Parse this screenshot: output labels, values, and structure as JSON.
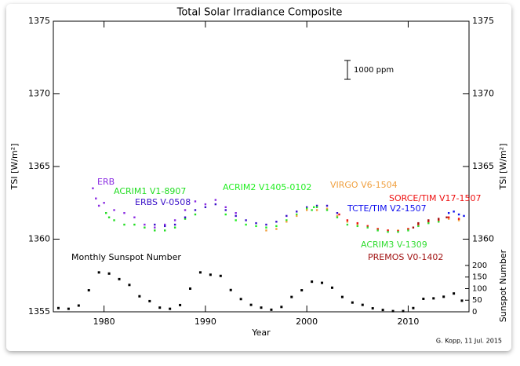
{
  "chart_data": {
    "type": "scatter",
    "title": "Total Solar Irradiance Composite",
    "x_label": "Year",
    "y_label": "TSI [W/m²]",
    "y2_label": "Sunspot Number",
    "annotations": [
      "1000 ppm",
      "G. Kopp, 11 Jul. 2015"
    ],
    "xlim": [
      1975,
      2016
    ],
    "xticks": [
      1980,
      1990,
      2000,
      2010
    ],
    "ylim": [
      1355,
      1375
    ],
    "yticks": [
      1355,
      1360,
      1365,
      1370,
      1375
    ],
    "y2lim": [
      0,
      1254
    ],
    "y2ticks": [
      0,
      50,
      100,
      150,
      200
    ],
    "series": [
      {
        "name": "ERB",
        "color": "#8a2be2",
        "x": [
          1978.9,
          1979.2,
          1979.5,
          1980,
          1981,
          1982,
          1983,
          1984,
          1985,
          1986,
          1987,
          1988,
          1989,
          1990,
          1991,
          1992,
          1993
        ],
        "values": [
          1363.5,
          1362.8,
          1362.3,
          1362.5,
          1362.0,
          1361.8,
          1361.5,
          1361.0,
          1360.8,
          1361.0,
          1361.3,
          1362.0,
          1362.6,
          1362.4,
          1362.7,
          1362.2,
          1361.8
        ]
      },
      {
        "name": "ACRIM1 V1-8907",
        "color": "#22dd22",
        "x": [
          1980.2,
          1980.5,
          1981,
          1982,
          1983,
          1984,
          1985,
          1986,
          1987,
          1988,
          1989
        ],
        "values": [
          1361.8,
          1361.5,
          1361.3,
          1361.0,
          1361.0,
          1360.8,
          1360.6,
          1360.6,
          1360.8,
          1361.4,
          1361.7
        ]
      },
      {
        "name": "ERBS V-0508",
        "color": "#3a10c8",
        "x": [
          1985,
          1986,
          1987,
          1988,
          1989,
          1990,
          1991,
          1992,
          1993,
          1994,
          1995,
          1996,
          1997,
          1998,
          1999,
          2000,
          2001,
          2002,
          2003
        ],
        "values": [
          1361.0,
          1360.9,
          1361.0,
          1361.5,
          1362.0,
          1362.2,
          1362.4,
          1362.0,
          1361.6,
          1361.3,
          1361.1,
          1361.0,
          1361.2,
          1361.6,
          1361.9,
          1362.2,
          1362.3,
          1362.3,
          1361.8
        ]
      },
      {
        "name": "ACRIM2 V1405-0102",
        "color": "#22ee22",
        "x": [
          1992,
          1993,
          1994,
          1995,
          1996,
          1997,
          1998,
          1999,
          2000,
          2000.7
        ],
        "values": [
          1361.7,
          1361.3,
          1361.0,
          1360.9,
          1360.8,
          1360.9,
          1361.3,
          1361.7,
          1362.1,
          1362.2
        ]
      },
      {
        "name": "VIRGO V6-1504",
        "color": "#f0a040",
        "x": [
          1996,
          1997,
          1998,
          1999,
          2000,
          2001,
          2002,
          2003,
          2004,
          2005,
          2006,
          2007,
          2008,
          2009,
          2010,
          2011,
          2012,
          2013,
          2014,
          2015
        ],
        "values": [
          1360.6,
          1360.7,
          1361.2,
          1361.6,
          1362.0,
          1362.0,
          1362.1,
          1361.6,
          1361.2,
          1361.0,
          1360.9,
          1360.7,
          1360.6,
          1360.6,
          1360.7,
          1361.0,
          1361.2,
          1361.3,
          1361.4,
          1361.3
        ]
      },
      {
        "name": "SORCE/TIM V17-1507",
        "color": "#ee1111",
        "x": [
          2003.2,
          2004,
          2005,
          2006,
          2007,
          2008,
          2009,
          2010,
          2011,
          2012,
          2013,
          2014,
          2015
        ],
        "values": [
          1361.7,
          1361.3,
          1361.1,
          1360.9,
          1360.7,
          1360.6,
          1360.55,
          1360.7,
          1361.0,
          1361.2,
          1361.3,
          1361.5,
          1361.4
        ]
      },
      {
        "name": "TCTE/TIM V2-1507",
        "color": "#1010ee",
        "x": [
          2014,
          2014.5,
          2015,
          2015.5
        ],
        "values": [
          1361.8,
          1361.9,
          1361.7,
          1361.6
        ]
      },
      {
        "name": "ACRIM3 V-1309",
        "color": "#33dd33",
        "x": [
          2000.5,
          2001,
          2002,
          2003,
          2004,
          2005,
          2006,
          2007,
          2008,
          2009,
          2010,
          2011,
          2012,
          2013
        ],
        "values": [
          1362.0,
          1362.2,
          1362.0,
          1361.5,
          1361.0,
          1360.9,
          1360.8,
          1360.6,
          1360.5,
          1360.5,
          1360.6,
          1360.9,
          1361.1,
          1361.2
        ]
      },
      {
        "name": "PREMOS V0-1402",
        "color": "#a01010",
        "x": [
          2010.5,
          2011,
          2012,
          2013,
          2013.8
        ],
        "values": [
          1360.8,
          1361.1,
          1361.3,
          1361.4,
          1361.5
        ]
      },
      {
        "name": "Monthly Sunspot Number",
        "color": "#000000",
        "axis": "y2",
        "x": [
          1975.5,
          1976.5,
          1977.5,
          1978.5,
          1979.5,
          1980.5,
          1981.5,
          1982.5,
          1983.5,
          1984.5,
          1985.5,
          1986.5,
          1987.5,
          1988.5,
          1989.5,
          1990.5,
          1991.5,
          1992.5,
          1993.5,
          1994.5,
          1995.5,
          1996.5,
          1997.5,
          1998.5,
          1999.5,
          2000.5,
          2001.5,
          2002.5,
          2003.5,
          2004.5,
          2005.5,
          2006.5,
          2007.5,
          2008.5,
          2009.5,
          2010.5,
          2011.5,
          2012.5,
          2013.5,
          2014.5,
          2015.3
        ],
        "values": [
          16,
          13,
          27,
          93,
          170,
          165,
          141,
          116,
          67,
          46,
          18,
          13,
          29,
          100,
          170,
          160,
          155,
          94,
          55,
          30,
          18,
          9,
          21,
          64,
          93,
          130,
          125,
          104,
          64,
          40,
          30,
          15,
          8,
          3,
          3,
          16,
          56,
          58,
          65,
          79,
          48
        ]
      }
    ]
  }
}
